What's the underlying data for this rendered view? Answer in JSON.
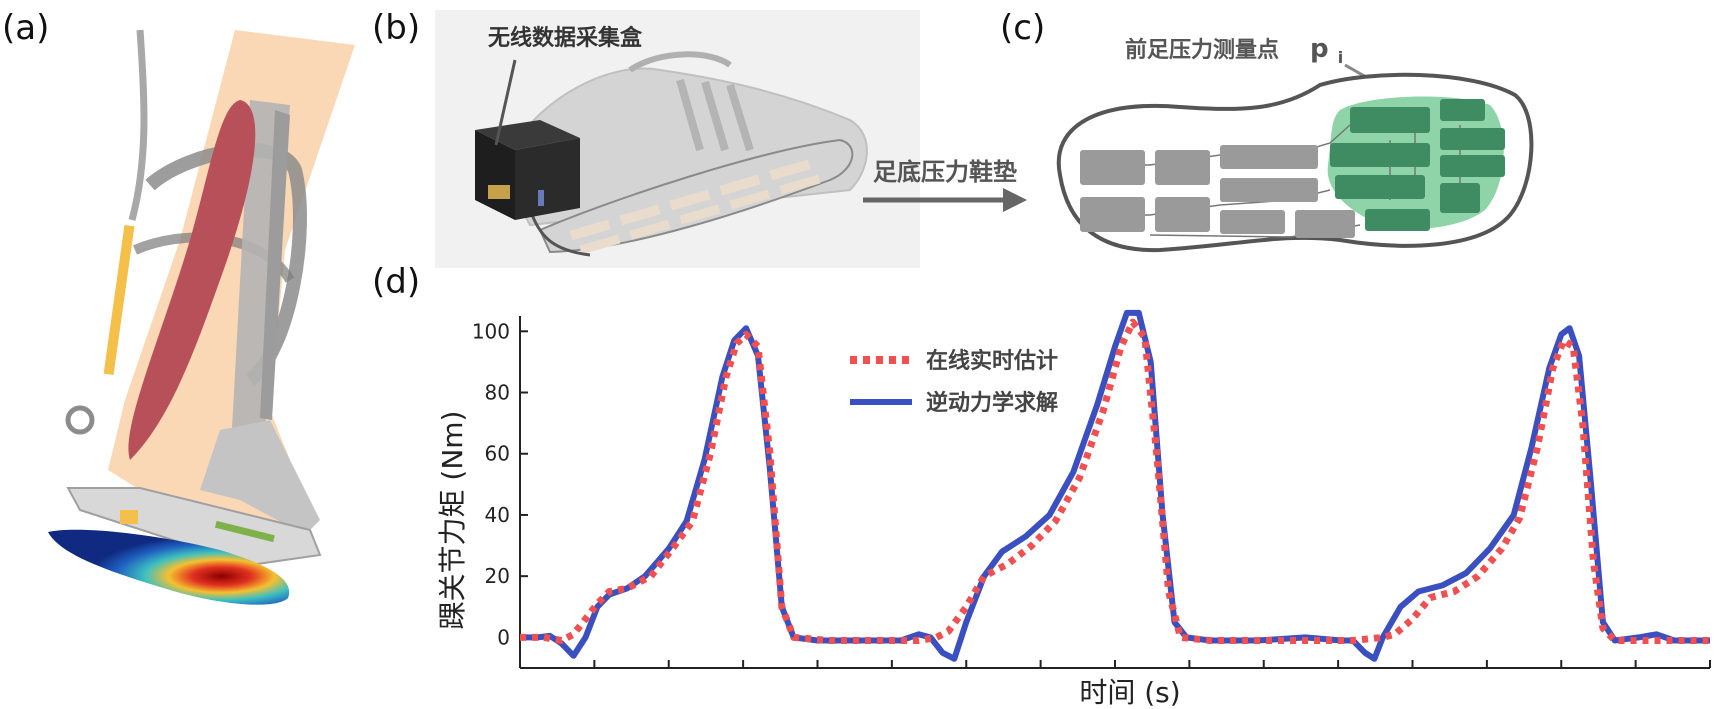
{
  "panels": {
    "a": {
      "label": "(a)"
    },
    "b": {
      "label": "(b)",
      "daq_box_label": "无线数据采集盒"
    },
    "c": {
      "label": "(c)",
      "point_label": "前足压力测量点",
      "point_symbol": "p",
      "point_subscript": "i"
    },
    "d": {
      "label": "(d)"
    }
  },
  "arrow_label": "足底压力鞋垫",
  "colors": {
    "estimate": "#f05050",
    "inverse_dynamics": "#3a4fc0",
    "forefoot": "#8fd4a8",
    "forefoot_cell": "#3f8c63",
    "rear_cell": "#9a9a9a",
    "muscle": "#b8505a",
    "skin": "#f9d3ad",
    "bone": "#b4b4b4"
  },
  "chart_data": {
    "type": "line",
    "xlabel": "时间 (s)",
    "ylabel": "踝关节力矩 (Nm)",
    "ylim": [
      -10,
      105
    ],
    "yticks": [
      0,
      20,
      40,
      60,
      80,
      100
    ],
    "xlim": [
      0,
      100
    ],
    "x_tick_count": 16,
    "x_tick_labels_shown": false,
    "legend_position": "top-center",
    "series": [
      {
        "name": "在线实时估计",
        "style": "dotted",
        "color": "#f05050",
        "points": [
          [
            0,
            0
          ],
          [
            2,
            0
          ],
          [
            3.5,
            -1
          ],
          [
            4.5,
            1
          ],
          [
            5.5,
            6
          ],
          [
            6.5,
            11
          ],
          [
            7.5,
            15
          ],
          [
            9,
            16
          ],
          [
            11,
            20
          ],
          [
            13,
            30
          ],
          [
            14.5,
            38
          ],
          [
            16,
            60
          ],
          [
            17.3,
            85
          ],
          [
            18.2,
            96
          ],
          [
            19,
            99
          ],
          [
            20,
            95
          ],
          [
            21,
            60
          ],
          [
            22,
            10
          ],
          [
            23,
            0
          ],
          [
            26,
            -1
          ],
          [
            30,
            -1
          ],
          [
            33.5,
            -1
          ],
          [
            35,
            0
          ],
          [
            36,
            2
          ],
          [
            37.5,
            10
          ],
          [
            39,
            20
          ],
          [
            41,
            24
          ],
          [
            43,
            30
          ],
          [
            45,
            38
          ],
          [
            47,
            52
          ],
          [
            49,
            74
          ],
          [
            50.5,
            95
          ],
          [
            51.5,
            103
          ],
          [
            52.5,
            98
          ],
          [
            53.5,
            60
          ],
          [
            54.5,
            15
          ],
          [
            55.5,
            0
          ],
          [
            58,
            -1
          ],
          [
            65,
            -1
          ],
          [
            70,
            -1
          ],
          [
            72.5,
            0
          ],
          [
            73.5,
            1
          ],
          [
            75,
            6
          ],
          [
            76.5,
            13
          ],
          [
            78.5,
            15
          ],
          [
            80.5,
            20
          ],
          [
            82.5,
            29
          ],
          [
            84,
            39
          ],
          [
            85.5,
            62
          ],
          [
            86.8,
            88
          ],
          [
            87.7,
            97
          ],
          [
            88.5,
            95
          ],
          [
            89.3,
            70
          ],
          [
            90.2,
            25
          ],
          [
            91,
            3
          ],
          [
            92,
            -1
          ],
          [
            95,
            -1
          ],
          [
            100,
            -1
          ]
        ]
      },
      {
        "name": "逆动力学求解",
        "style": "solid",
        "color": "#3a4fc0",
        "points": [
          [
            0,
            0
          ],
          [
            1.5,
            0
          ],
          [
            2.5,
            0.5
          ],
          [
            3.5,
            -2
          ],
          [
            4.5,
            -6
          ],
          [
            5.5,
            0
          ],
          [
            6.5,
            10
          ],
          [
            7.5,
            14
          ],
          [
            9,
            16
          ],
          [
            10.5,
            20
          ],
          [
            12.5,
            29
          ],
          [
            14,
            38
          ],
          [
            15.5,
            58
          ],
          [
            17,
            85
          ],
          [
            18,
            97
          ],
          [
            19,
            101
          ],
          [
            20,
            92
          ],
          [
            21,
            55
          ],
          [
            22,
            10
          ],
          [
            23,
            0
          ],
          [
            25,
            -1
          ],
          [
            28,
            -1
          ],
          [
            32,
            -1
          ],
          [
            33.5,
            1
          ],
          [
            34.5,
            0
          ],
          [
            35.5,
            -5
          ],
          [
            36.5,
            -7
          ],
          [
            37.5,
            5
          ],
          [
            39,
            20
          ],
          [
            40.5,
            28
          ],
          [
            42.5,
            33
          ],
          [
            44.5,
            40
          ],
          [
            46.5,
            54
          ],
          [
            48.5,
            76
          ],
          [
            50,
            95
          ],
          [
            51,
            106
          ],
          [
            52,
            106
          ],
          [
            53,
            90
          ],
          [
            54,
            40
          ],
          [
            55,
            5
          ],
          [
            56,
            0
          ],
          [
            58,
            -1
          ],
          [
            62,
            -1
          ],
          [
            66,
            0
          ],
          [
            69,
            -1
          ],
          [
            70,
            -1
          ],
          [
            71,
            -5
          ],
          [
            71.8,
            -7
          ],
          [
            72.5,
            0
          ],
          [
            74,
            10
          ],
          [
            75.5,
            15
          ],
          [
            77.5,
            17
          ],
          [
            79.5,
            21
          ],
          [
            81.5,
            29
          ],
          [
            83.5,
            40
          ],
          [
            85,
            62
          ],
          [
            86.5,
            88
          ],
          [
            87.5,
            99
          ],
          [
            88.2,
            101
          ],
          [
            89,
            92
          ],
          [
            90,
            50
          ],
          [
            91,
            5
          ],
          [
            92,
            -1
          ],
          [
            94,
            0
          ],
          [
            95.5,
            1
          ],
          [
            97,
            -1
          ],
          [
            100,
            -1
          ]
        ]
      }
    ]
  }
}
